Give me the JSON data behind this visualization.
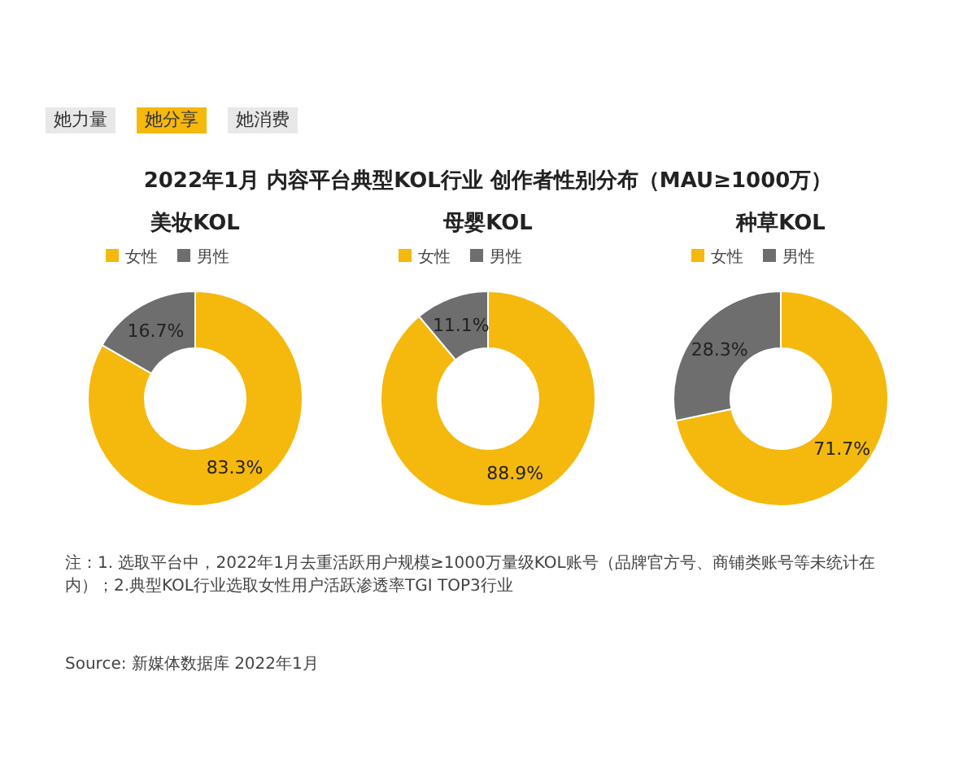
{
  "chart_data": [
    {
      "type": "donut",
      "title": "美妆KOL",
      "categories": [
        "女性",
        "男性"
      ],
      "values": [
        83.3,
        16.7
      ],
      "value_labels": [
        "83.3%",
        "16.7%"
      ],
      "colors": [
        "#f5b80c",
        "#6e6e6e"
      ],
      "legend": "top left",
      "annotations": [
        "她力量",
        "她分享",
        "她消费",
        "2022年1月 内容平台典型KOL行业 创作者性别分布（MAU≥1000万）",
        "注：1. 选取平台中，2022年1月去重活跃用户规模≥1000万量级KOL账号（品牌官方号、商铺类账号等未统计在内）；2.典型KOL行业选取女性用户活跃渗透率TGI TOP3行业",
        "Source: 新媒体数据库 2022年1月"
      ]
    },
    {
      "type": "donut",
      "title": "母婴KOL",
      "categories": [
        "女性",
        "男性"
      ],
      "values": [
        88.9,
        11.1
      ],
      "value_labels": [
        "88.9%",
        "11.1%"
      ],
      "colors": [
        "#f5b80c",
        "#6e6e6e"
      ],
      "legend": "top left"
    },
    {
      "type": "donut",
      "title": "种草KOL",
      "categories": [
        "女性",
        "男性"
      ],
      "values": [
        71.7,
        28.3
      ],
      "value_labels": [
        "71.7%",
        "28.3%"
      ],
      "colors": [
        "#f5b80c",
        "#6e6e6e"
      ],
      "legend": "top left"
    }
  ]
}
